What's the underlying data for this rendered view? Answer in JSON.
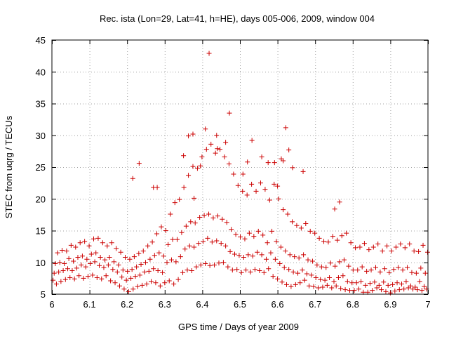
{
  "chart_data": {
    "type": "scatter",
    "title": "Rec. ista (Lon=29, Lat=41, h=HE), days 005-006, 2009, window 004",
    "xlabel": "GPS time / Days of year 2009",
    "ylabel": "STEC from uqrg / TECUs",
    "xlim": [
      6,
      7
    ],
    "ylim": [
      5,
      45
    ],
    "xticks": [
      6,
      6.1,
      6.2,
      6.3,
      6.4,
      6.5,
      6.6,
      6.7,
      6.8,
      6.9,
      7
    ],
    "xtick_labels": [
      "6",
      "6.1",
      "6.2",
      "6.3",
      "6.4",
      "6.5",
      "6.6",
      "6.7",
      "6.8",
      "6.9",
      "7"
    ],
    "yticks": [
      5,
      10,
      15,
      20,
      25,
      30,
      35,
      40,
      45
    ],
    "ytick_labels": [
      "5",
      "10",
      "15",
      "20",
      "25",
      "30",
      "35",
      "40",
      "45"
    ],
    "grid": true,
    "marker": "plus",
    "color": "#cc0000",
    "series": [
      {
        "name": "STEC",
        "x": [
          6.003,
          6.012,
          6.024,
          6.036,
          6.048,
          6.06,
          6.072,
          6.084,
          6.096,
          6.108,
          6.12,
          6.132,
          6.144,
          6.156,
          6.168,
          6.18,
          6.192,
          6.204,
          6.216,
          6.228,
          6.24,
          6.252,
          6.264,
          6.276,
          6.288,
          6.3,
          6.312,
          6.324,
          6.336,
          6.348,
          6.36,
          6.372,
          6.384,
          6.396,
          6.408,
          6.42,
          6.432,
          6.444,
          6.456,
          6.468,
          6.48,
          6.492,
          6.504,
          6.516,
          6.528,
          6.54,
          6.552,
          6.564,
          6.576,
          6.588,
          6.6,
          6.612,
          6.624,
          6.636,
          6.648,
          6.66,
          6.672,
          6.684,
          6.696,
          6.708,
          6.72,
          6.732,
          6.744,
          6.756,
          6.768,
          6.78,
          6.792,
          6.804,
          6.816,
          6.828,
          6.84,
          6.852,
          6.864,
          6.876,
          6.888,
          6.9,
          6.912,
          6.924,
          6.936,
          6.948,
          6.96,
          6.972,
          6.984,
          6.996,
          6.006,
          6.018,
          6.03,
          6.042,
          6.054,
          6.066,
          6.078,
          6.09,
          6.102,
          6.114,
          6.126,
          6.138,
          6.15,
          6.162,
          6.174,
          6.186,
          6.198,
          6.21,
          6.222,
          6.234,
          6.246,
          6.258,
          6.27,
          6.282,
          6.294,
          6.306,
          6.318,
          6.33,
          6.342,
          6.354,
          6.366,
          6.378,
          6.39,
          6.402,
          6.414,
          6.426,
          6.438,
          6.45,
          6.462,
          6.474,
          6.486,
          6.498,
          6.51,
          6.522,
          6.534,
          6.546,
          6.558,
          6.57,
          6.582,
          6.594,
          6.606,
          6.618,
          6.63,
          6.642,
          6.654,
          6.666,
          6.678,
          6.69,
          6.702,
          6.714,
          6.726,
          6.738,
          6.75,
          6.762,
          6.774,
          6.786,
          6.798,
          6.81,
          6.822,
          6.834,
          6.846,
          6.858,
          6.87,
          6.882,
          6.894,
          6.906,
          6.918,
          6.93,
          6.942,
          6.954,
          6.966,
          6.978,
          6.99,
          6.009,
          6.021,
          6.033,
          6.045,
          6.057,
          6.069,
          6.081,
          6.093,
          6.105,
          6.117,
          6.129,
          6.141,
          6.153,
          6.165,
          6.177,
          6.189,
          6.201,
          6.213,
          6.225,
          6.237,
          6.249,
          6.261,
          6.273,
          6.285,
          6.297,
          6.309,
          6.321,
          6.333,
          6.345,
          6.357,
          6.369,
          6.381,
          6.393,
          6.405,
          6.417,
          6.429,
          6.441,
          6.453,
          6.465,
          6.477,
          6.489,
          6.501,
          6.513,
          6.525,
          6.537,
          6.549,
          6.561,
          6.573,
          6.585,
          6.597,
          6.609,
          6.621,
          6.633,
          6.645,
          6.657,
          6.669,
          6.681,
          6.693,
          6.705,
          6.717,
          6.729,
          6.741,
          6.753,
          6.765,
          6.777,
          6.789,
          6.801,
          6.813,
          6.825,
          6.837,
          6.849,
          6.861,
          6.873,
          6.885,
          6.897,
          6.909,
          6.921,
          6.933,
          6.945,
          6.957,
          6.969,
          6.981,
          6.993,
          6.015,
          6.027,
          6.039,
          6.051,
          6.063,
          6.075,
          6.087,
          6.099,
          6.111,
          6.123,
          6.135,
          6.147,
          6.159,
          6.171,
          6.183,
          6.195,
          6.207,
          6.219,
          6.231,
          6.243,
          6.255,
          6.267,
          6.279,
          6.291,
          6.303,
          6.315,
          6.327,
          6.339,
          6.351,
          6.363,
          6.375,
          6.387,
          6.399,
          6.411,
          6.423,
          6.435,
          6.447,
          6.459,
          6.471,
          6.483,
          6.495,
          6.507,
          6.519,
          6.531,
          6.543,
          6.555,
          6.567,
          6.579,
          6.591,
          6.603,
          6.615,
          6.627,
          6.639,
          6.651,
          6.663,
          6.675,
          6.687,
          6.699,
          6.711,
          6.723,
          6.735,
          6.747,
          6.759,
          6.771,
          6.783,
          6.795,
          6.807,
          6.819,
          6.831,
          6.843,
          6.855,
          6.867,
          6.879,
          6.891,
          6.903,
          6.915,
          6.927,
          6.939,
          6.951,
          6.963,
          6.975,
          6.987,
          6.999,
          6.27,
          6.28,
          6.363,
          6.375,
          6.408,
          6.418,
          6.472,
          6.462,
          6.438,
          6.532,
          6.558,
          6.61,
          6.622,
          6.63,
          6.592,
          6.64,
          6.668,
          6.6,
          6.508,
          6.395,
          6.35,
          6.44,
          6.52,
          6.575,
          6.615,
          6.378,
          6.765,
          6.752,
          6.232,
          6.215
        ],
        "y": [
          7.2,
          6.6,
          7.0,
          7.3,
          7.6,
          7.4,
          7.9,
          7.5,
          7.8,
          8.0,
          7.6,
          7.4,
          7.9,
          7.1,
          6.8,
          6.3,
          5.8,
          5.4,
          5.8,
          6.2,
          6.4,
          6.6,
          7.0,
          6.8,
          6.3,
          6.8,
          7.1,
          6.6,
          7.3,
          8.4,
          8.8,
          8.7,
          9.3,
          9.6,
          9.8,
          9.5,
          9.6,
          9.9,
          10.0,
          9.3,
          8.8,
          8.9,
          8.4,
          8.8,
          8.5,
          8.9,
          8.7,
          8.4,
          9.0,
          7.8,
          7.4,
          6.9,
          6.5,
          6.2,
          6.5,
          6.8,
          7.2,
          6.3,
          6.2,
          6.0,
          6.1,
          6.4,
          6.0,
          6.3,
          5.9,
          5.7,
          5.6,
          5.6,
          5.8,
          5.3,
          5.3,
          5.6,
          6.0,
          5.7,
          5.4,
          5.2,
          5.5,
          5.7,
          5.8,
          6.0,
          5.8,
          5.7,
          5.6,
          5.8,
          8.3,
          8.5,
          8.7,
          9.0,
          8.7,
          9.1,
          9.6,
          9.3,
          9.8,
          10.1,
          9.5,
          9.2,
          9.6,
          8.9,
          8.5,
          7.7,
          7.2,
          7.5,
          7.8,
          8.0,
          8.5,
          8.6,
          9.0,
          8.7,
          8.4,
          10.0,
          10.4,
          10.1,
          10.9,
          12.1,
          12.6,
          12.4,
          13.0,
          13.3,
          13.8,
          13.2,
          13.4,
          13.0,
          12.6,
          11.7,
          11.3,
          11.1,
          10.8,
          11.2,
          11.0,
          11.6,
          11.2,
          10.5,
          11.5,
          10.5,
          9.8,
          9.2,
          8.9,
          8.5,
          8.3,
          8.8,
          8.2,
          8.0,
          7.6,
          7.3,
          7.2,
          7.6,
          7.0,
          7.6,
          7.9,
          7.0,
          6.8,
          6.8,
          7.0,
          6.4,
          6.7,
          6.9,
          6.4,
          6.9,
          6.4,
          6.5,
          6.8,
          6.6,
          7.0,
          6.3,
          6.1,
          7.0,
          6.2,
          9.8,
          10.0,
          9.8,
          10.6,
          10.2,
          10.8,
          11.0,
          10.5,
          11.3,
          11.5,
          10.8,
          10.4,
          10.8,
          10.1,
          9.6,
          8.8,
          8.6,
          8.9,
          9.3,
          9.7,
          10.0,
          10.5,
          11.1,
          11.5,
          11.0,
          12.8,
          13.6,
          13.6,
          14.7,
          15.7,
          16.4,
          16.2,
          17.1,
          17.4,
          17.6,
          17.0,
          17.3,
          16.8,
          16.3,
          15.2,
          14.4,
          14.0,
          13.7,
          14.6,
          14.1,
          14.9,
          14.3,
          13.1,
          14.9,
          13.3,
          12.4,
          11.8,
          11.2,
          10.9,
          10.7,
          11.2,
          10.4,
          10.2,
          9.6,
          9.3,
          9.2,
          9.9,
          9.4,
          10.1,
          10.4,
          9.4,
          8.8,
          8.8,
          9.3,
          8.6,
          8.8,
          9.2,
          8.5,
          9.0,
          8.4,
          8.9,
          9.2,
          8.8,
          9.2,
          8.4,
          8.3,
          9.1,
          8.3,
          11.5,
          11.9,
          11.8,
          12.7,
          12.4,
          13.1,
          13.3,
          12.6,
          13.7,
          13.8,
          13.1,
          12.6,
          13.1,
          12.2,
          11.6,
          10.8,
          10.5,
          10.9,
          11.4,
          11.8,
          12.6,
          13.2,
          14.5,
          15.6,
          15.0,
          17.6,
          19.4,
          19.9,
          21.8,
          23.7,
          25.1,
          24.8,
          26.6,
          27.8,
          28.6,
          27.2,
          27.8,
          26.6,
          25.5,
          23.9,
          22.1,
          21.2,
          20.6,
          22.3,
          21.2,
          22.5,
          21.5,
          19.8,
          22.3,
          20.0,
          18.3,
          17.6,
          16.4,
          15.8,
          15.4,
          16.1,
          14.9,
          14.6,
          13.8,
          13.3,
          13.2,
          14.1,
          13.5,
          14.2,
          14.6,
          13.1,
          12.3,
          12.4,
          13.0,
          12.0,
          12.4,
          12.9,
          11.8,
          12.6,
          11.8,
          12.4,
          12.9,
          12.3,
          12.9,
          11.8,
          11.7,
          12.7,
          11.6,
          21.8,
          21.8,
          29.9,
          30.2,
          31.0,
          42.9,
          33.5,
          28.9,
          30.0,
          29.2,
          26.6,
          26.3,
          31.2,
          27.7,
          25.7,
          24.9,
          24.3,
          22.0,
          23.9,
          25.2,
          26.8,
          27.9,
          25.8,
          25.7,
          26.0,
          20.1,
          19.5,
          18.4,
          25.6,
          23.2
        ]
      }
    ]
  }
}
